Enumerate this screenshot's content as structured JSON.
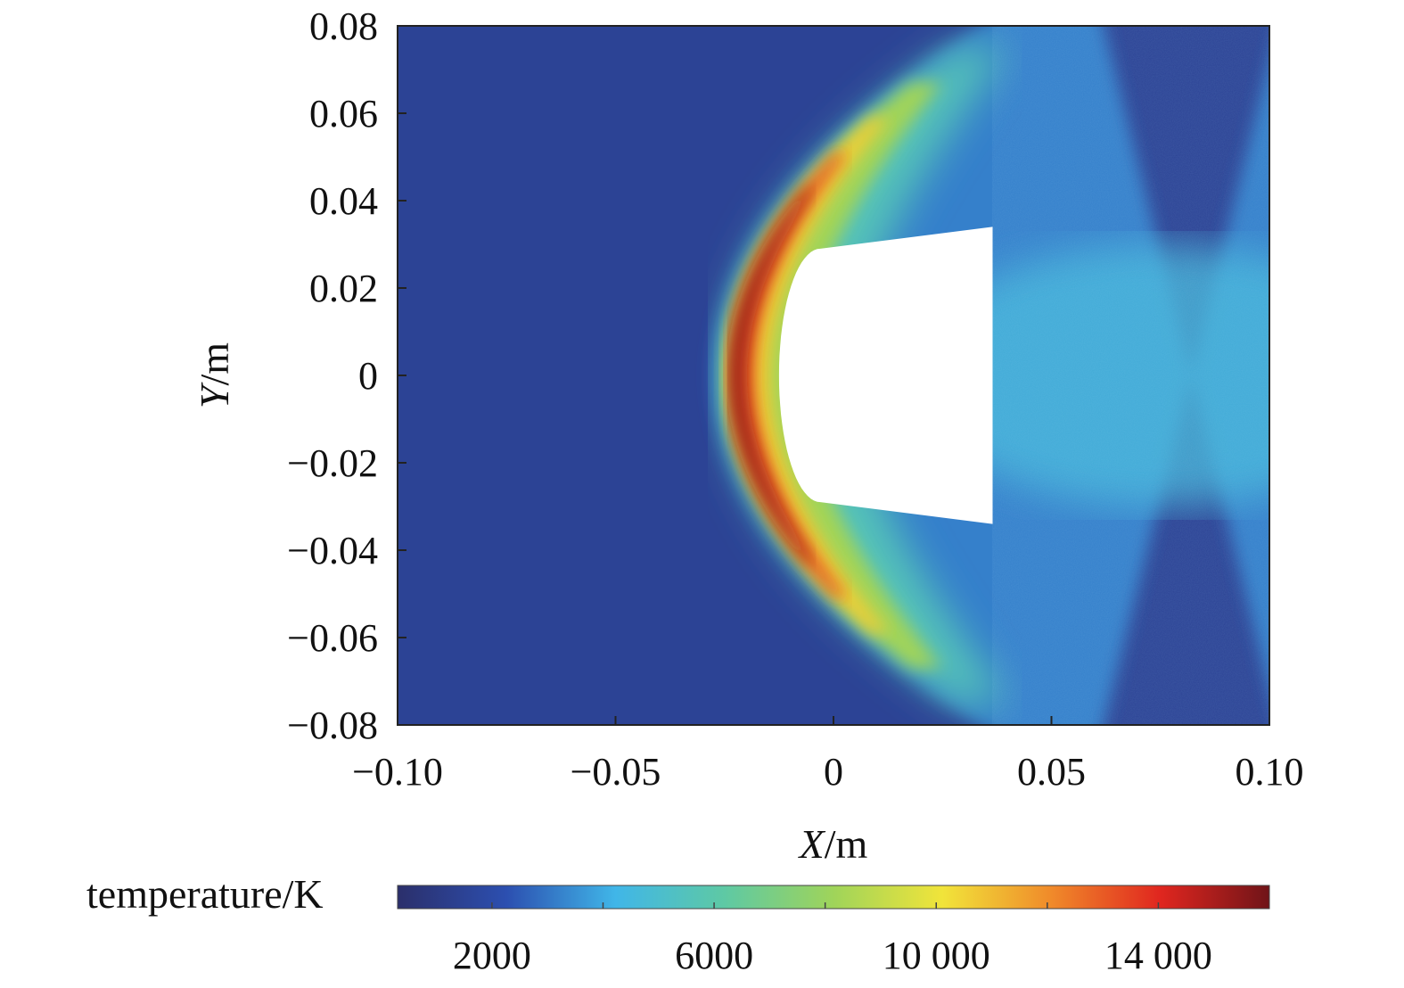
{
  "chart_data": {
    "type": "heatmap",
    "title": "",
    "xlabel": {
      "var": "X",
      "unit": "/m"
    },
    "ylabel": {
      "var": "Y",
      "unit": "/m"
    },
    "xlim": [
      -0.1,
      0.1
    ],
    "ylim": [
      -0.08,
      0.08
    ],
    "x_ticks": [
      -0.1,
      -0.05,
      0,
      0.05,
      0.1
    ],
    "x_tick_labels": [
      "−0.10",
      "−0.05",
      "0",
      "0.05",
      "0.10"
    ],
    "y_ticks": [
      0.08,
      0.06,
      0.04,
      0.02,
      0,
      -0.02,
      -0.04,
      -0.06,
      -0.08
    ],
    "y_tick_labels": [
      "0.08",
      "0.06",
      "0.04",
      "0.02",
      "0",
      "−0.02",
      "−0.04",
      "−0.06",
      "−0.08"
    ],
    "field": "temperature distribution around a blunt capsule (bow shock)",
    "body_outline": {
      "nose_x": -0.0125,
      "shoulder_x": -0.003,
      "shoulder_y": 0.029,
      "base_x": 0.0365,
      "base_y": 0.034
    },
    "shock": {
      "stand_off_x": -0.0255,
      "peak_temperature": 16000,
      "freestream_temperature": 300
    },
    "colorbar": {
      "label": "temperature/K",
      "range": [
        300,
        16000
      ],
      "tick_values": [
        2000,
        6000,
        10000,
        14000
      ],
      "tick_labels": [
        "2000",
        "6000",
        "10 000",
        "14 000"
      ],
      "colors": [
        "#2b2f6b",
        "#2c4fb0",
        "#40b6e8",
        "#5ec9a4",
        "#9fd45a",
        "#f1e43a",
        "#f08a2a",
        "#e0261f",
        "#701418"
      ]
    }
  }
}
